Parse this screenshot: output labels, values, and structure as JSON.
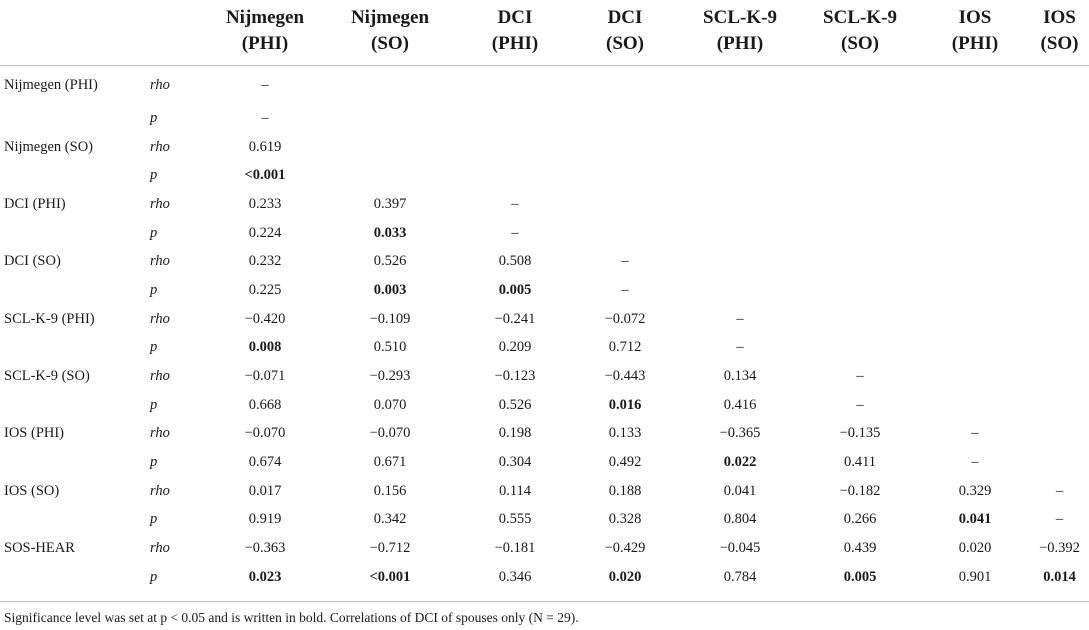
{
  "columns": [
    {
      "line1": "Nijmegen",
      "line2": "(PHI)"
    },
    {
      "line1": "Nijmegen",
      "line2": "(SO)"
    },
    {
      "line1": "DCI",
      "line2": "(PHI)"
    },
    {
      "line1": "DCI",
      "line2": "(SO)"
    },
    {
      "line1": "SCL-K-9",
      "line2": "(PHI)"
    },
    {
      "line1": "SCL-K-9",
      "line2": "(SO)"
    },
    {
      "line1": "IOS",
      "line2": "(PHI)"
    },
    {
      "line1": "IOS",
      "line2": "(SO)"
    }
  ],
  "rows": [
    {
      "label": "Nijmegen (PHI)",
      "stat": "rho",
      "cells": [
        {
          "v": "–"
        }
      ]
    },
    {
      "label": "",
      "stat": "p",
      "cells": [
        {
          "v": "–"
        }
      ]
    },
    {
      "label": "Nijmegen (SO)",
      "stat": "rho",
      "cells": [
        {
          "v": "0.619"
        }
      ]
    },
    {
      "label": "",
      "stat": "p",
      "cells": [
        {
          "v": "<0.001",
          "b": true
        }
      ]
    },
    {
      "label": "DCI (PHI)",
      "stat": "rho",
      "cells": [
        {
          "v": "0.233"
        },
        {
          "v": "0.397"
        },
        {
          "v": "–"
        }
      ]
    },
    {
      "label": "",
      "stat": "p",
      "cells": [
        {
          "v": "0.224"
        },
        {
          "v": "0.033",
          "b": true
        },
        {
          "v": "–"
        }
      ]
    },
    {
      "label": "DCI (SO)",
      "stat": "rho",
      "cells": [
        {
          "v": "0.232"
        },
        {
          "v": "0.526"
        },
        {
          "v": "0.508"
        },
        {
          "v": "–"
        }
      ]
    },
    {
      "label": "",
      "stat": "p",
      "cells": [
        {
          "v": "0.225"
        },
        {
          "v": "0.003",
          "b": true
        },
        {
          "v": "0.005",
          "b": true
        },
        {
          "v": "–"
        }
      ]
    },
    {
      "label": "SCL-K-9 (PHI)",
      "stat": "rho",
      "cells": [
        {
          "v": "−0.420"
        },
        {
          "v": "−0.109"
        },
        {
          "v": "−0.241"
        },
        {
          "v": "−0.072"
        },
        {
          "v": "–"
        }
      ]
    },
    {
      "label": "",
      "stat": "p",
      "cells": [
        {
          "v": "0.008",
          "b": true
        },
        {
          "v": "0.510"
        },
        {
          "v": "0.209"
        },
        {
          "v": "0.712"
        },
        {
          "v": "–"
        }
      ]
    },
    {
      "label": "SCL-K-9 (SO)",
      "stat": "rho",
      "cells": [
        {
          "v": "−0.071"
        },
        {
          "v": "−0.293"
        },
        {
          "v": "−0.123"
        },
        {
          "v": "−0.443"
        },
        {
          "v": "0.134"
        },
        {
          "v": "–"
        }
      ]
    },
    {
      "label": "",
      "stat": "p",
      "cells": [
        {
          "v": "0.668"
        },
        {
          "v": "0.070"
        },
        {
          "v": "0.526"
        },
        {
          "v": "0.016",
          "b": true
        },
        {
          "v": "0.416"
        },
        {
          "v": "–"
        }
      ]
    },
    {
      "label": "IOS (PHI)",
      "stat": "rho",
      "cells": [
        {
          "v": "−0.070"
        },
        {
          "v": "−0.070"
        },
        {
          "v": "0.198"
        },
        {
          "v": "0.133"
        },
        {
          "v": "−0.365"
        },
        {
          "v": "−0.135"
        },
        {
          "v": "–"
        }
      ]
    },
    {
      "label": "",
      "stat": "p",
      "cells": [
        {
          "v": "0.674"
        },
        {
          "v": "0.671"
        },
        {
          "v": "0.304"
        },
        {
          "v": "0.492"
        },
        {
          "v": "0.022",
          "b": true
        },
        {
          "v": "0.411"
        },
        {
          "v": "–"
        }
      ]
    },
    {
      "label": "IOS (SO)",
      "stat": "rho",
      "cells": [
        {
          "v": "0.017"
        },
        {
          "v": "0.156"
        },
        {
          "v": "0.114"
        },
        {
          "v": "0.188"
        },
        {
          "v": "0.041"
        },
        {
          "v": "−0.182"
        },
        {
          "v": "0.329"
        },
        {
          "v": "–"
        }
      ]
    },
    {
      "label": "",
      "stat": "p",
      "cells": [
        {
          "v": "0.919"
        },
        {
          "v": "0.342"
        },
        {
          "v": "0.555"
        },
        {
          "v": "0.328"
        },
        {
          "v": "0.804"
        },
        {
          "v": "0.266"
        },
        {
          "v": "0.041",
          "b": true
        },
        {
          "v": "–"
        }
      ]
    },
    {
      "label": "SOS-HEAR",
      "stat": "rho",
      "cells": [
        {
          "v": "−0.363"
        },
        {
          "v": "−0.712"
        },
        {
          "v": "−0.181"
        },
        {
          "v": "−0.429"
        },
        {
          "v": "−0.045"
        },
        {
          "v": "0.439"
        },
        {
          "v": "0.020"
        },
        {
          "v": "−0.392"
        }
      ]
    },
    {
      "label": "",
      "stat": "p",
      "cells": [
        {
          "v": "0.023",
          "b": true
        },
        {
          "v": "<0.001",
          "b": true
        },
        {
          "v": "0.346"
        },
        {
          "v": "0.020",
          "b": true
        },
        {
          "v": "0.784"
        },
        {
          "v": "0.005",
          "b": true
        },
        {
          "v": "0.901"
        },
        {
          "v": "0.014",
          "b": true
        }
      ]
    }
  ],
  "footnote": "Significance level was set at p < 0.05 and is written in bold. Correlations of DCI of spouses only (N = 29)."
}
